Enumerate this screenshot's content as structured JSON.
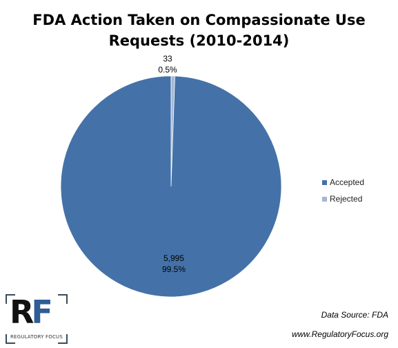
{
  "chart_data": {
    "type": "pie",
    "title": "FDA Action Taken on Compassionate Use Requests (2010-2014)",
    "title_lines": [
      "FDA Action Taken on Compassionate Use",
      "Requests (2010-2014)"
    ],
    "series": [
      {
        "name": "Accepted",
        "value": 5995,
        "label_value": "5,995",
        "label_percent": "99.5%",
        "color": "#4472a8"
      },
      {
        "name": "Rejected",
        "value": 33,
        "label_value": "33",
        "label_percent": "0.5%",
        "color": "#a4b7d6"
      }
    ],
    "legend_position": "right"
  },
  "source_text": "Data Source: FDA",
  "website_text": "www.RegulatoryFocus.org",
  "logo": {
    "letters_r": "R",
    "letters_f": "F",
    "subtitle": "REGULATORY FOCUS"
  }
}
